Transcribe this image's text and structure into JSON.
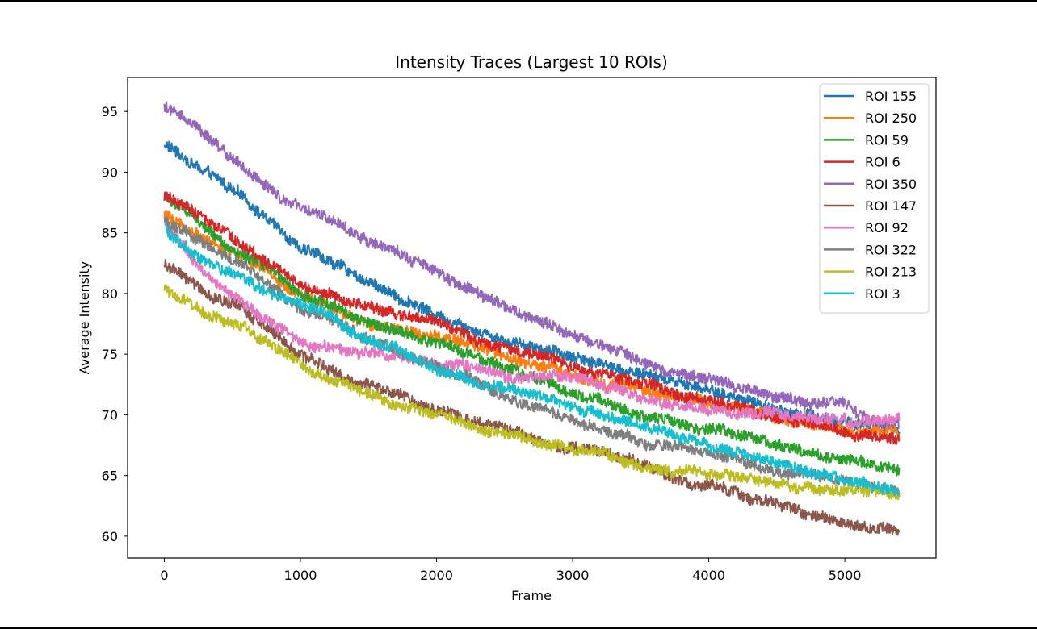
{
  "chart_data": {
    "type": "line",
    "title": "Intensity Traces (Largest 10 ROIs)",
    "xlabel": "Frame",
    "ylabel": "Average Intensity",
    "xlim": [
      -270,
      5670
    ],
    "ylim": [
      58.2,
      97.8
    ],
    "xticks": [
      0,
      1000,
      2000,
      3000,
      4000,
      5000
    ],
    "yticks": [
      60,
      65,
      70,
      75,
      80,
      85,
      90,
      95
    ],
    "grid": false,
    "legend_position": "top-right",
    "x_range": [
      0,
      5400
    ],
    "series": [
      {
        "name": "ROI 155",
        "color": "#1f77b4",
        "noise": 0.45,
        "x": [
          0,
          300,
          600,
          1000,
          1500,
          2000,
          2500,
          3000,
          3500,
          4000,
          4500,
          5000,
          5400
        ],
        "y": [
          92.3,
          90.0,
          87.5,
          84.0,
          81.0,
          78.3,
          76.5,
          75.0,
          73.5,
          72.0,
          70.5,
          69.5,
          68.5
        ]
      },
      {
        "name": "ROI 250",
        "color": "#ff7f0e",
        "noise": 0.45,
        "x": [
          0,
          300,
          600,
          1000,
          1500,
          2000,
          2500,
          3000,
          3500,
          4000,
          4500,
          5000,
          5400
        ],
        "y": [
          86.5,
          84.5,
          82.8,
          80.0,
          77.8,
          76.5,
          74.8,
          73.3,
          72.0,
          70.8,
          70.0,
          68.8,
          68.5
        ]
      },
      {
        "name": "ROI 59",
        "color": "#2ca02c",
        "noise": 0.45,
        "x": [
          0,
          300,
          600,
          1000,
          1500,
          2000,
          2500,
          3000,
          3500,
          4000,
          4500,
          5000,
          5400
        ],
        "y": [
          88.0,
          85.5,
          83.0,
          80.0,
          77.5,
          75.8,
          74.0,
          71.8,
          70.0,
          68.8,
          67.5,
          66.2,
          65.5
        ]
      },
      {
        "name": "ROI 6",
        "color": "#d62728",
        "noise": 0.45,
        "x": [
          0,
          300,
          600,
          1000,
          1500,
          2000,
          2500,
          3000,
          3500,
          4000,
          4500,
          5000,
          5400
        ],
        "y": [
          88.0,
          86.0,
          83.5,
          80.5,
          79.0,
          77.5,
          75.3,
          74.0,
          72.5,
          71.0,
          70.0,
          68.3,
          67.8
        ]
      },
      {
        "name": "ROI 350",
        "color": "#9467bd",
        "noise": 0.45,
        "x": [
          0,
          300,
          600,
          1000,
          1500,
          2000,
          2500,
          3000,
          3500,
          4000,
          4500,
          5000,
          5400
        ],
        "y": [
          95.5,
          93.0,
          90.0,
          87.0,
          84.3,
          81.8,
          79.0,
          76.5,
          74.5,
          73.0,
          71.5,
          70.8,
          69.5
        ]
      },
      {
        "name": "ROI 147",
        "color": "#8c564b",
        "noise": 0.45,
        "x": [
          0,
          300,
          600,
          1000,
          1500,
          2000,
          2500,
          3000,
          3500,
          4000,
          4500,
          5000,
          5400
        ],
        "y": [
          82.5,
          80.0,
          78.3,
          75.0,
          72.5,
          70.5,
          69.0,
          67.3,
          65.5,
          64.0,
          62.5,
          61.0,
          60.3
        ]
      },
      {
        "name": "ROI 92",
        "color": "#e377c2",
        "noise": 0.45,
        "x": [
          0,
          300,
          600,
          1000,
          1500,
          2000,
          2500,
          3000,
          3500,
          4000,
          4500,
          5000,
          5400
        ],
        "y": [
          86.0,
          81.5,
          79.0,
          76.5,
          75.0,
          73.8,
          73.5,
          73.0,
          71.5,
          70.5,
          70.0,
          69.5,
          69.0
        ]
      },
      {
        "name": "ROI 322",
        "color": "#7f7f7f",
        "noise": 0.45,
        "x": [
          0,
          300,
          600,
          1000,
          1500,
          2000,
          2500,
          3000,
          3500,
          4000,
          4500,
          5000,
          5400
        ],
        "y": [
          86.0,
          84.0,
          82.0,
          79.0,
          76.5,
          74.0,
          71.5,
          69.5,
          67.8,
          66.5,
          65.5,
          64.5,
          63.8
        ]
      },
      {
        "name": "ROI 213",
        "color": "#bcbd22",
        "noise": 0.45,
        "x": [
          0,
          300,
          600,
          1000,
          1500,
          2000,
          2500,
          3000,
          3500,
          4000,
          4500,
          5000,
          5400
        ],
        "y": [
          80.5,
          78.0,
          77.0,
          74.0,
          72.0,
          70.0,
          68.5,
          67.0,
          65.8,
          65.0,
          64.0,
          63.5,
          63.0
        ]
      },
      {
        "name": "ROI 3",
        "color": "#17becf",
        "noise": 0.45,
        "x": [
          0,
          300,
          600,
          1000,
          1500,
          2000,
          2500,
          3000,
          3500,
          4000,
          4500,
          5000,
          5400
        ],
        "y": [
          85.5,
          82.5,
          81.0,
          79.0,
          76.0,
          73.8,
          72.5,
          70.5,
          69.0,
          67.5,
          66.0,
          64.8,
          64.0
        ]
      }
    ]
  }
}
